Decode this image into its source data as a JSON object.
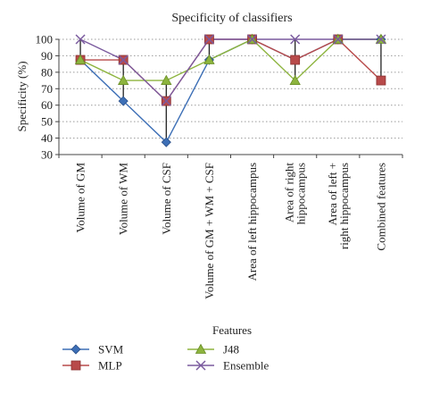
{
  "chart_data": {
    "type": "line",
    "title": "Specificity of classifiers",
    "xlabel": "Features",
    "ylabel": "Specificity (%)",
    "ylim": [
      30,
      100
    ],
    "yticks": [
      30,
      40,
      50,
      60,
      70,
      80,
      90,
      100
    ],
    "grid": "horizontal dotted",
    "legend_position": "bottom",
    "categories": [
      "Volume of GM",
      "Volume of WM",
      "Volume of CSF",
      "Volume of GM + WM + CSF",
      "Area of left hippocampus",
      "Area of right hippocampus",
      "Area of left + right hippocampus",
      "Combined features"
    ],
    "series": [
      {
        "name": "SVM",
        "marker": "diamond",
        "color": "#3d6fb6",
        "values": [
          87.5,
          62.5,
          37.5,
          87.5,
          100,
          87.5,
          100,
          100
        ]
      },
      {
        "name": "MLP",
        "marker": "square",
        "color": "#b84a4a",
        "values": [
          87.5,
          87.5,
          62.5,
          100,
          100,
          87.5,
          100,
          75
        ]
      },
      {
        "name": "J48",
        "marker": "triangle",
        "color": "#8db43e",
        "values": [
          87.5,
          75,
          75,
          87.5,
          100,
          75,
          100,
          100
        ]
      },
      {
        "name": "Ensemble",
        "marker": "x",
        "color": "#7a5a9e",
        "values": [
          100,
          87.5,
          62.5,
          100,
          100,
          100,
          100,
          100
        ]
      }
    ]
  }
}
